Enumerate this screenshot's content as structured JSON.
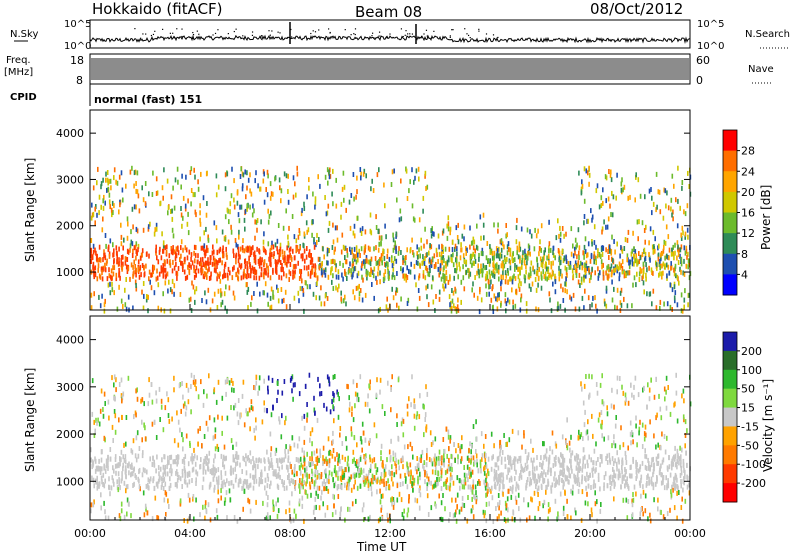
{
  "header": {
    "station": "Hokkaido (fitACF)",
    "beam": "Beam 08",
    "date": "08/Oct/2012"
  },
  "top_panels": {
    "nsky_label": "N.Sky",
    "nsky_ticks": [
      "10^5",
      "10^0"
    ],
    "nsearch_label": "N.Search",
    "nsearch_ticks": [
      "10^5",
      "10^0"
    ],
    "freq_label": "Freq.",
    "freq_unit": "[MHz]",
    "freq_ticks": [
      "18",
      "8"
    ],
    "nave_label": "Nave",
    "nave_ticks": [
      "60",
      "0"
    ],
    "cpid_label": "CPID",
    "cpid_text": "normal (fast) 151"
  },
  "chart_data": [
    {
      "type": "heatmap",
      "name": "power",
      "ylabel": "Slant Range [km]",
      "y_ticks": [
        "1000",
        "2000",
        "3000",
        "4000"
      ],
      "ylim": [
        180,
        4500
      ],
      "colorbar_label": "Power [dB]",
      "colorbar_ticks": [
        "28",
        "24",
        "20",
        "16",
        "12",
        "8",
        "4"
      ],
      "colorbar_colors": [
        "#ff0000",
        "#ff6e00",
        "#ffa500",
        "#d0c800",
        "#6cbb2c",
        "#2e8b57",
        "#1e4fb0",
        "#0000ff"
      ],
      "x_range_hours": [
        0,
        24
      ]
    },
    {
      "type": "heatmap",
      "name": "velocity",
      "ylabel": "Slant Range [km]",
      "y_ticks": [
        "1000",
        "2000",
        "3000",
        "4000"
      ],
      "ylim": [
        180,
        4500
      ],
      "colorbar_label": "Velocity [m s⁻¹]",
      "colorbar_ticks": [
        "200",
        "100",
        "50",
        "15",
        "-15",
        "-50",
        "-100",
        "-200"
      ],
      "colorbar_colors": [
        "#1c1caa",
        "#2a6e2a",
        "#2eb82e",
        "#7fd93f",
        "#c8c8c8",
        "#ffa200",
        "#ff7a00",
        "#ff3a00",
        "#ff0000"
      ],
      "x_range_hours": [
        0,
        24
      ]
    }
  ],
  "x_axis": {
    "ticks": [
      "00:00",
      "04:00",
      "08:00",
      "12:00",
      "16:00",
      "20:00",
      "00:00"
    ],
    "label": "Time UT"
  }
}
